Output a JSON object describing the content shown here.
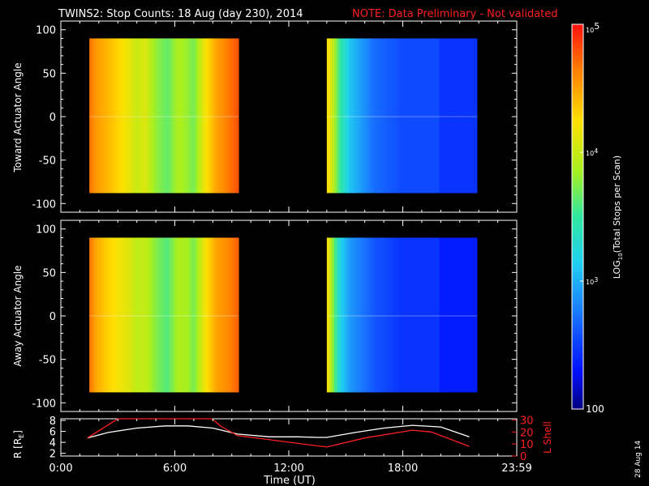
{
  "header": {
    "title": "TWINS2: Stop Counts: 18 Aug (day 230), 2014",
    "note": "NOTE: Data Preliminary - Not validated"
  },
  "stamp": "28 Aug 14",
  "colors": {
    "note": "#ff2020",
    "lshell": "#ff2020",
    "r_curve": "#ffffff",
    "background": "#000000"
  },
  "chart_data": [
    {
      "type": "heatmap",
      "panel": "top",
      "ylabel": "Toward Actuator Angle",
      "ylim": [
        -110,
        110
      ],
      "yticks": [
        "100",
        "50",
        "0",
        "-50",
        "-100"
      ],
      "xlim_hours": [
        0,
        24
      ],
      "data_time_ranges_hours": [
        [
          1.5,
          9.35
        ],
        [
          14.0,
          21.9
        ]
      ],
      "angle_range": [
        -88,
        90
      ],
      "profile": [
        {
          "t": 1.5,
          "log": 4.7
        },
        {
          "t": 1.8,
          "log": 4.55
        },
        {
          "t": 2.3,
          "log": 4.45
        },
        {
          "t": 3.0,
          "log": 4.3
        },
        {
          "t": 3.6,
          "log": 4.15
        },
        {
          "t": 4.0,
          "log": 4.0
        },
        {
          "t": 4.4,
          "log": 4.1
        },
        {
          "t": 5.0,
          "log": 3.8
        },
        {
          "t": 5.6,
          "log": 3.65
        },
        {
          "t": 6.2,
          "log": 3.9
        },
        {
          "t": 6.7,
          "log": 3.8
        },
        {
          "t": 7.0,
          "log": 3.7
        },
        {
          "t": 7.6,
          "log": 4.2
        },
        {
          "t": 8.2,
          "log": 4.5
        },
        {
          "t": 8.8,
          "log": 4.65
        },
        {
          "t": 9.35,
          "log": 4.8
        },
        {
          "t": 14.0,
          "log": 4.3
        },
        {
          "t": 14.3,
          "log": 4.0
        },
        {
          "t": 14.7,
          "log": 3.5
        },
        {
          "t": 15.2,
          "log": 3.1
        },
        {
          "t": 16.5,
          "log": 2.7
        },
        {
          "t": 18.0,
          "log": 2.55
        },
        {
          "t": 21.9,
          "log": 2.45
        }
      ]
    },
    {
      "type": "heatmap",
      "panel": "middle",
      "ylabel": "Away Actuator Angle",
      "ylim": [
        -110,
        110
      ],
      "yticks": [
        "100",
        "50",
        "0",
        "-50",
        "-100"
      ],
      "xlim_hours": [
        0,
        24
      ],
      "data_time_ranges_hours": [
        [
          1.5,
          9.35
        ],
        [
          14.0,
          21.9
        ]
      ],
      "angle_range": [
        -88,
        90
      ],
      "profile": [
        {
          "t": 1.5,
          "log": 4.7
        },
        {
          "t": 1.8,
          "log": 4.5
        },
        {
          "t": 2.3,
          "log": 4.35
        },
        {
          "t": 3.0,
          "log": 4.2
        },
        {
          "t": 3.6,
          "log": 4.1
        },
        {
          "t": 4.0,
          "log": 3.95
        },
        {
          "t": 4.4,
          "log": 4.0
        },
        {
          "t": 5.0,
          "log": 3.75
        },
        {
          "t": 5.6,
          "log": 3.6
        },
        {
          "t": 6.2,
          "log": 3.9
        },
        {
          "t": 6.7,
          "log": 3.85
        },
        {
          "t": 7.0,
          "log": 3.7
        },
        {
          "t": 7.6,
          "log": 4.2
        },
        {
          "t": 8.2,
          "log": 4.5
        },
        {
          "t": 8.8,
          "log": 4.6
        },
        {
          "t": 9.35,
          "log": 4.75
        },
        {
          "t": 14.0,
          "log": 4.3
        },
        {
          "t": 14.3,
          "log": 3.8
        },
        {
          "t": 14.7,
          "log": 3.2
        },
        {
          "t": 15.2,
          "log": 2.9
        },
        {
          "t": 16.5,
          "log": 2.6
        },
        {
          "t": 18.0,
          "log": 2.45
        },
        {
          "t": 21.9,
          "log": 2.35
        }
      ]
    },
    {
      "type": "line",
      "panel": "bottom",
      "ylabel": "R [R",
      "ylabel_sub": "E",
      "ylabel_end": "]",
      "ylabel_right": "L Shell",
      "xlabel": "Time (UT)",
      "xticks": [
        "0:00",
        "6:00",
        "12:00",
        "18:00",
        "23:59"
      ],
      "xlim_hours": [
        0,
        24
      ],
      "ylim_left": [
        1.5,
        8.3
      ],
      "ylim_right": [
        0,
        31
      ],
      "yticks_left": [
        "8",
        "6",
        "4",
        "2"
      ],
      "yticks_right": [
        "30",
        "20",
        "10",
        "0"
      ],
      "series": [
        {
          "axis": "left",
          "x": [
            1.4,
            2.5,
            4.0,
            5.5,
            6.7,
            8.0,
            9.3,
            11.0,
            12.5,
            13.5,
            14.0,
            15.5,
            17.0,
            18.5,
            20.0,
            21.5
          ],
          "y": [
            4.8,
            5.8,
            6.6,
            7.0,
            7.0,
            6.6,
            5.5,
            5.0,
            5.0,
            4.9,
            4.9,
            5.8,
            6.6,
            7.1,
            6.8,
            5.0
          ]
        },
        {
          "axis": "right",
          "x": [
            1.4,
            2.4,
            3.0,
            7.95,
            8.4,
            9.3,
            14.0,
            16.0,
            18.5,
            19.5,
            21.5
          ],
          "y": [
            15.0,
            25.0,
            31.0,
            31.0,
            25.0,
            17.0,
            7.5,
            15.0,
            21.5,
            20.0,
            8.0
          ]
        }
      ]
    }
  ],
  "colorbar": {
    "label_prefix": "LOG",
    "label_sub": "10",
    "label_suffix": "(Total Stops per Scan)",
    "range_log": [
      2,
      5
    ],
    "tick_top_base": "10",
    "tick_top_exp": "5",
    "tick_mid1_base": "10",
    "tick_mid1_exp": "4",
    "tick_mid2_base": "10",
    "tick_mid2_exp": "3",
    "tick_bottom": "100"
  }
}
